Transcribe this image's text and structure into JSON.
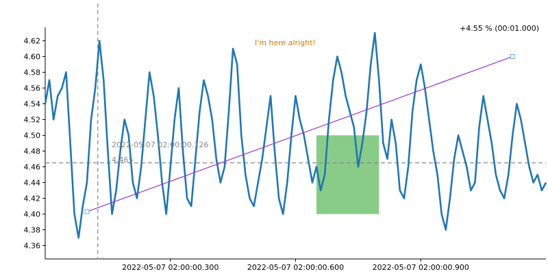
{
  "chart_data": {
    "type": "line",
    "x_tick_labels": [
      "2022-05-07 02:00:00.300",
      "2022-05-07 02:00:00.600",
      "2022-05-07 02:00:00.900"
    ],
    "x_tick_values": [
      0.3,
      0.6,
      0.9
    ],
    "xlim": [
      0.0,
      1.2
    ],
    "ylim": [
      4.343,
      4.637
    ],
    "y_ticks": [
      "4.36",
      "4.38",
      "4.40",
      "4.42",
      "4.44",
      "4.46",
      "4.48",
      "4.50",
      "4.52",
      "4.54",
      "4.56",
      "4.58",
      "4.60",
      "4.62"
    ],
    "grid": false,
    "series": [
      {
        "color": "#1f77b4",
        "x": [
          0.0,
          0.01,
          0.02,
          0.03,
          0.04,
          0.05,
          0.06,
          0.07,
          0.08,
          0.09,
          0.1,
          0.11,
          0.12,
          0.13,
          0.14,
          0.15,
          0.16,
          0.17,
          0.18,
          0.19,
          0.2,
          0.21,
          0.22,
          0.23,
          0.24,
          0.25,
          0.26,
          0.27,
          0.28,
          0.29,
          0.3,
          0.31,
          0.32,
          0.33,
          0.34,
          0.35,
          0.36,
          0.37,
          0.38,
          0.39,
          0.4,
          0.41,
          0.42,
          0.43,
          0.44,
          0.45,
          0.46,
          0.47,
          0.48,
          0.49,
          0.5,
          0.51,
          0.52,
          0.53,
          0.54,
          0.55,
          0.56,
          0.57,
          0.58,
          0.59,
          0.6,
          0.61,
          0.62,
          0.63,
          0.64,
          0.65,
          0.66,
          0.67,
          0.68,
          0.69,
          0.7,
          0.71,
          0.72,
          0.73,
          0.74,
          0.75,
          0.76,
          0.77,
          0.78,
          0.79,
          0.8,
          0.81,
          0.82,
          0.83,
          0.84,
          0.85,
          0.86,
          0.87,
          0.88,
          0.89,
          0.9,
          0.91,
          0.92,
          0.93,
          0.94,
          0.95,
          0.96,
          0.97,
          0.98,
          0.99,
          1.0,
          1.01,
          1.02,
          1.03,
          1.04,
          1.05,
          1.06,
          1.07,
          1.08,
          1.09,
          1.1,
          1.11,
          1.12,
          1.13,
          1.14,
          1.15,
          1.16,
          1.17,
          1.18,
          1.19,
          1.2
        ],
        "y": [
          4.54,
          4.57,
          4.52,
          4.55,
          4.56,
          4.58,
          4.49,
          4.4,
          4.37,
          4.41,
          4.44,
          4.52,
          4.56,
          4.62,
          4.57,
          4.48,
          4.4,
          4.43,
          4.48,
          4.52,
          4.5,
          4.44,
          4.42,
          4.46,
          4.52,
          4.58,
          4.55,
          4.5,
          4.44,
          4.4,
          4.46,
          4.52,
          4.56,
          4.48,
          4.42,
          4.41,
          4.47,
          4.53,
          4.57,
          4.55,
          4.52,
          4.47,
          4.44,
          4.46,
          4.53,
          4.61,
          4.59,
          4.5,
          4.45,
          4.42,
          4.41,
          4.44,
          4.47,
          4.51,
          4.55,
          4.48,
          4.42,
          4.4,
          4.44,
          4.5,
          4.55,
          4.52,
          4.5,
          4.47,
          4.44,
          4.46,
          4.43,
          4.45,
          4.52,
          4.57,
          4.6,
          4.58,
          4.55,
          4.53,
          4.51,
          4.46,
          4.49,
          4.53,
          4.59,
          4.63,
          4.57,
          4.49,
          4.47,
          4.52,
          4.49,
          4.43,
          4.42,
          4.46,
          4.53,
          4.57,
          4.59,
          4.56,
          4.52,
          4.48,
          4.45,
          4.4,
          4.38,
          4.42,
          4.47,
          4.5,
          4.48,
          4.46,
          4.43,
          4.44,
          4.51,
          4.55,
          4.52,
          4.49,
          4.45,
          4.43,
          4.42,
          4.45,
          4.5,
          4.54,
          4.52,
          4.49,
          4.46,
          4.44,
          4.45,
          4.43,
          4.44
        ]
      }
    ],
    "annotations": {
      "crosshair_text_1": "2022-05-07 02:00:00.126",
      "crosshair_text_2": "4.465",
      "note": "I'm here alright!",
      "measure": "+4.55 % (00:01.000)"
    },
    "crosshair": {
      "x": 0.126,
      "y": 4.465
    },
    "trend_line": {
      "x": [
        0.1,
        1.12
      ],
      "y": [
        4.403,
        4.6
      ]
    },
    "highlight_rect": {
      "x": [
        0.65,
        0.8
      ],
      "y": [
        4.4,
        4.5
      ],
      "color": "#88cc88"
    },
    "colors": {
      "line": "#1f77b4",
      "trend": "#9933cc",
      "note": "#cc7a00",
      "crosshair": "#888888",
      "rect": "#88cc88"
    }
  }
}
